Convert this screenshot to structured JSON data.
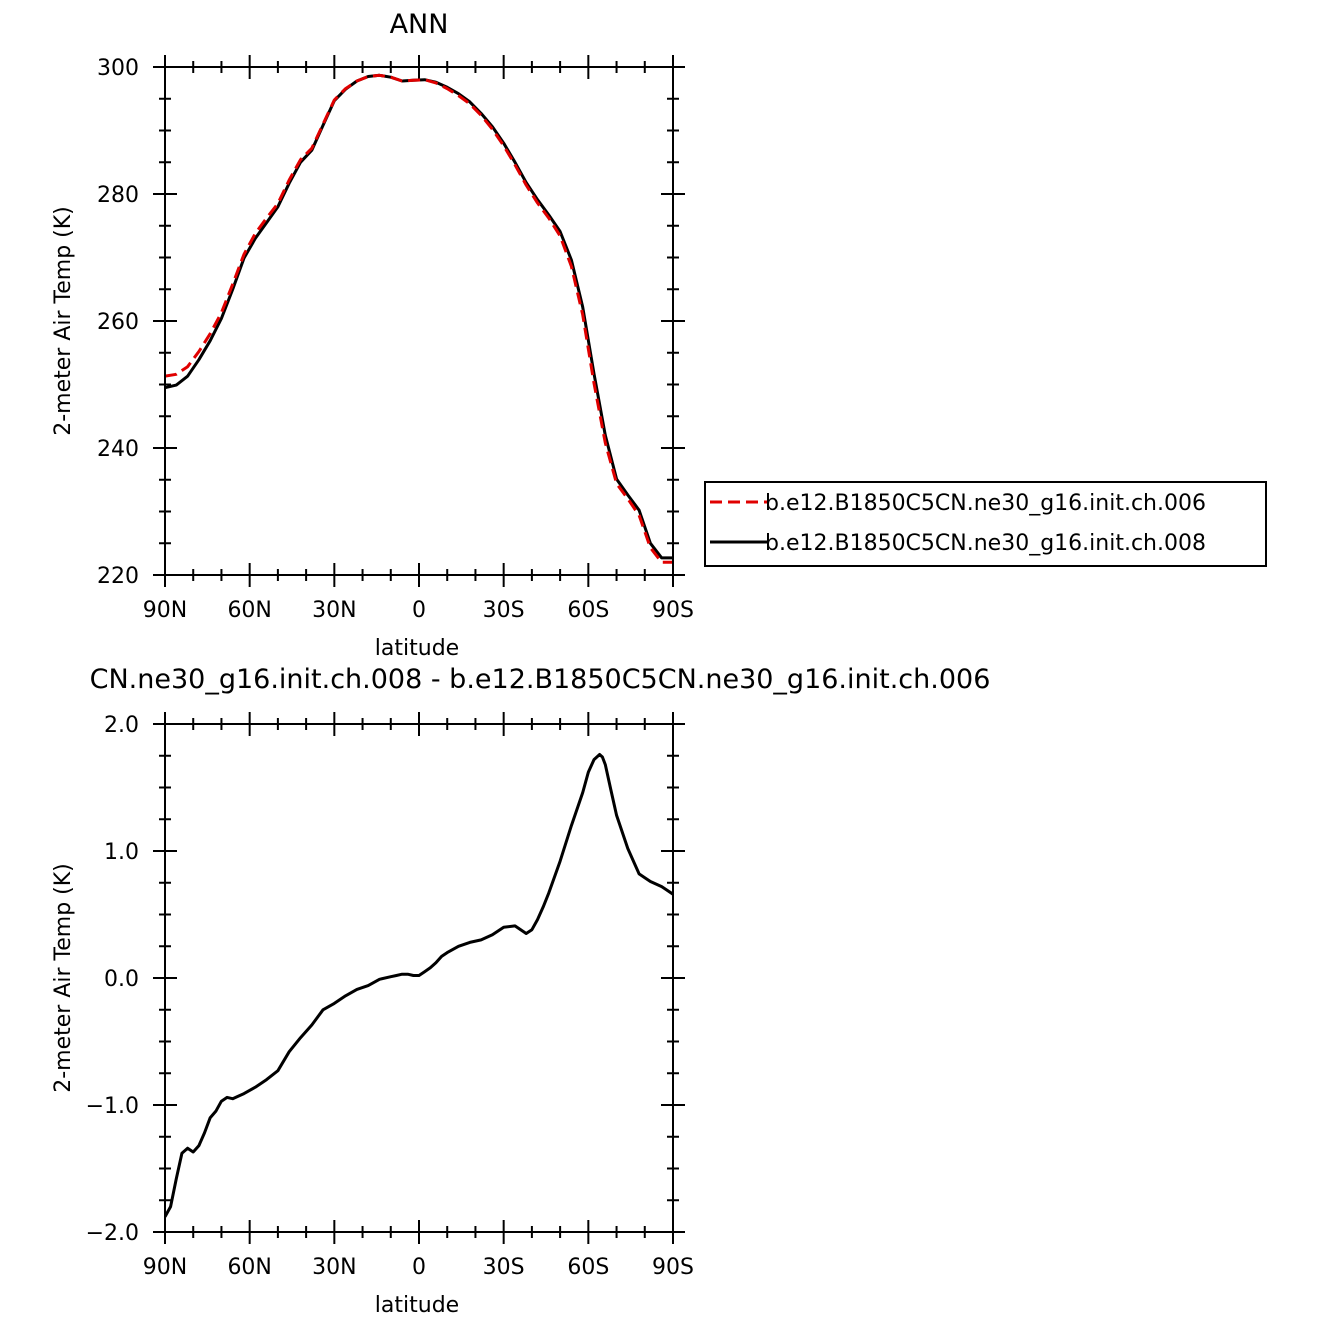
{
  "chart_data": [
    {
      "type": "line",
      "title": "ANN",
      "xlabel": "latitude",
      "ylabel": "2-meter Air Temp (K)",
      "xlim": [
        90,
        -90
      ],
      "ylim": [
        220,
        300
      ],
      "xticks": [
        90,
        60,
        30,
        0,
        -30,
        -60,
        -90
      ],
      "xtick_labels": [
        "90N",
        "60N",
        "30N",
        "0",
        "30S",
        "60S",
        "90S"
      ],
      "yticks": [
        220,
        240,
        260,
        280,
        300
      ],
      "ytick_labels": [
        "220",
        "240",
        "260",
        "280",
        "300"
      ],
      "legend_position": "right",
      "series": [
        {
          "name": "b.e12.B1850C5CN.ne30_g16.init.ch.006",
          "color": "#e00000",
          "dash": "dashed",
          "x": [
            90,
            86,
            82,
            78,
            74,
            70,
            66,
            62,
            58,
            54,
            50,
            46,
            42,
            38,
            34,
            30,
            26,
            22,
            18,
            14,
            10,
            6,
            2,
            -2,
            -6,
            -10,
            -14,
            -18,
            -22,
            -26,
            -30,
            -34,
            -38,
            -42,
            -46,
            -50,
            -54,
            -58,
            -62,
            -66,
            -70,
            -74,
            -78,
            -82,
            -86,
            -90
          ],
          "y": [
            251.3,
            251.6,
            252.8,
            255.2,
            258.0,
            261.3,
            265.8,
            270.5,
            273.8,
            276.2,
            278.5,
            282.2,
            285.4,
            287.2,
            291.0,
            294.8,
            296.6,
            297.8,
            298.5,
            298.7,
            298.4,
            297.8,
            297.9,
            298.0,
            297.5,
            296.6,
            295.5,
            294.2,
            292.4,
            290.2,
            287.6,
            284.6,
            281.4,
            278.6,
            276.2,
            273.4,
            268.6,
            261.0,
            250.2,
            240.8,
            234.4,
            232.0,
            229.4,
            224.3,
            222.0,
            222.0
          ],
          "series_note": ""
        },
        {
          "name": "b.e12.B1850C5CN.ne30_g16.init.ch.008",
          "color": "#000000",
          "dash": "solid",
          "x": [
            90,
            86,
            82,
            78,
            74,
            70,
            66,
            62,
            58,
            54,
            50,
            46,
            42,
            38,
            34,
            30,
            26,
            22,
            18,
            14,
            10,
            6,
            2,
            -2,
            -6,
            -10,
            -14,
            -18,
            -22,
            -26,
            -30,
            -34,
            -38,
            -42,
            -46,
            -50,
            -54,
            -58,
            -62,
            -66,
            -70,
            -74,
            -78,
            -82,
            -86,
            -90
          ],
          "y": [
            249.5,
            249.9,
            251.3,
            253.9,
            256.9,
            260.4,
            265.0,
            269.9,
            273.0,
            275.5,
            278.0,
            281.7,
            285.0,
            286.9,
            290.8,
            294.7,
            296.5,
            297.8,
            298.5,
            298.7,
            298.4,
            297.8,
            297.9,
            298.0,
            297.6,
            296.8,
            295.8,
            294.5,
            292.7,
            290.6,
            288.0,
            285.0,
            281.8,
            279.1,
            276.7,
            274.1,
            269.6,
            262.2,
            251.7,
            242.0,
            235.1,
            232.6,
            230.2,
            225.0,
            222.7,
            222.7
          ],
          "series_note": ""
        }
      ]
    },
    {
      "type": "line",
      "title": "CN.ne30_g16.init.ch.008 - b.e12.B1850C5CN.ne30_g16.init.ch.006",
      "xlabel": "latitude",
      "ylabel": "2-meter Air Temp (K)",
      "xlim": [
        90,
        -90
      ],
      "ylim": [
        -2.0,
        2.0
      ],
      "xticks": [
        90,
        60,
        30,
        0,
        -30,
        -60,
        -90
      ],
      "xtick_labels": [
        "90N",
        "60N",
        "30N",
        "0",
        "30S",
        "60S",
        "90S"
      ],
      "yticks": [
        -2.0,
        -1.0,
        0.0,
        1.0,
        2.0
      ],
      "ytick_labels": [
        "−2.0",
        "−1.0",
        "0.0",
        "1.0",
        "2.0"
      ],
      "series": [
        {
          "color": "#000000",
          "dash": "solid",
          "x": [
            90,
            88,
            86,
            84,
            82,
            80,
            78,
            76,
            74,
            72,
            70,
            68,
            66,
            64,
            62,
            58,
            54,
            50,
            46,
            42,
            38,
            34,
            30,
            26,
            22,
            18,
            14,
            10,
            8,
            6,
            4,
            2,
            0,
            -2,
            -4,
            -6,
            -8,
            -10,
            -14,
            -18,
            -22,
            -26,
            -30,
            -34,
            -38,
            -40,
            -42,
            -44,
            -46,
            -50,
            -54,
            -58,
            -60,
            -62,
            -64,
            -65,
            -66,
            -68,
            -70,
            -74,
            -78,
            -80,
            -82,
            -86,
            -90
          ],
          "y": [
            -1.88,
            -1.8,
            -1.58,
            -1.38,
            -1.34,
            -1.37,
            -1.32,
            -1.22,
            -1.1,
            -1.05,
            -0.97,
            -0.94,
            -0.95,
            -0.93,
            -0.91,
            -0.86,
            -0.8,
            -0.73,
            -0.58,
            -0.47,
            -0.37,
            -0.25,
            -0.2,
            -0.14,
            -0.09,
            -0.06,
            -0.01,
            0.01,
            0.02,
            0.03,
            0.03,
            0.02,
            0.02,
            0.05,
            0.08,
            0.12,
            0.17,
            0.2,
            0.25,
            0.28,
            0.3,
            0.34,
            0.4,
            0.41,
            0.35,
            0.38,
            0.46,
            0.56,
            0.67,
            0.92,
            1.2,
            1.46,
            1.62,
            1.72,
            1.76,
            1.74,
            1.68,
            1.48,
            1.28,
            1.02,
            0.82,
            0.79,
            0.76,
            0.72,
            0.66
          ],
          "series_note": ""
        }
      ]
    }
  ]
}
